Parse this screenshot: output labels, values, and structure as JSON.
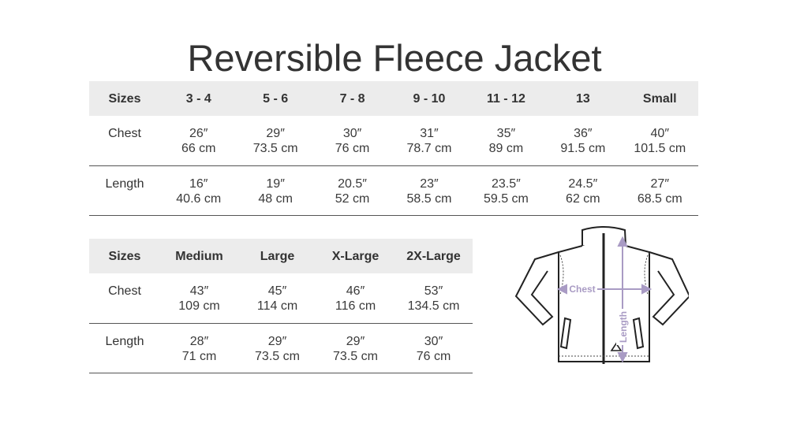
{
  "title": "Reversible Fleece Jacket",
  "table1": {
    "headers": [
      "Sizes",
      "3 - 4",
      "5 - 6",
      "7 - 8",
      "9 - 10",
      "11 - 12",
      "13",
      "Small"
    ],
    "rows": [
      {
        "label": "Chest",
        "in": [
          "26″",
          "29″",
          "30″",
          "31″",
          "35″",
          "36″",
          "40″"
        ],
        "cm": [
          "66 cm",
          "73.5 cm",
          "76 cm",
          "78.7 cm",
          "89 cm",
          "91.5 cm",
          "101.5 cm"
        ]
      },
      {
        "label": "Length",
        "in": [
          "16″",
          "19″",
          "20.5″",
          "23″",
          "23.5″",
          "24.5″",
          "27″"
        ],
        "cm": [
          "40.6 cm",
          "48 cm",
          "52 cm",
          "58.5 cm",
          "59.5 cm",
          "62 cm",
          "68.5 cm"
        ]
      }
    ]
  },
  "table2": {
    "headers": [
      "Sizes",
      "Medium",
      "Large",
      "X-Large",
      "2X-Large"
    ],
    "rows": [
      {
        "label": "Chest",
        "in": [
          "43″",
          "45″",
          "46″",
          "53″"
        ],
        "cm": [
          "109 cm",
          "114 cm",
          "116 cm",
          "134.5 cm"
        ]
      },
      {
        "label": "Length",
        "in": [
          "28″",
          "29″",
          "29″",
          "30″"
        ],
        "cm": [
          "71 cm",
          "73.5 cm",
          "73.5 cm",
          "76 cm"
        ]
      }
    ]
  },
  "diagram": {
    "chest_label": "Chest",
    "length_label": "Length",
    "accent": "#a99bc4"
  }
}
